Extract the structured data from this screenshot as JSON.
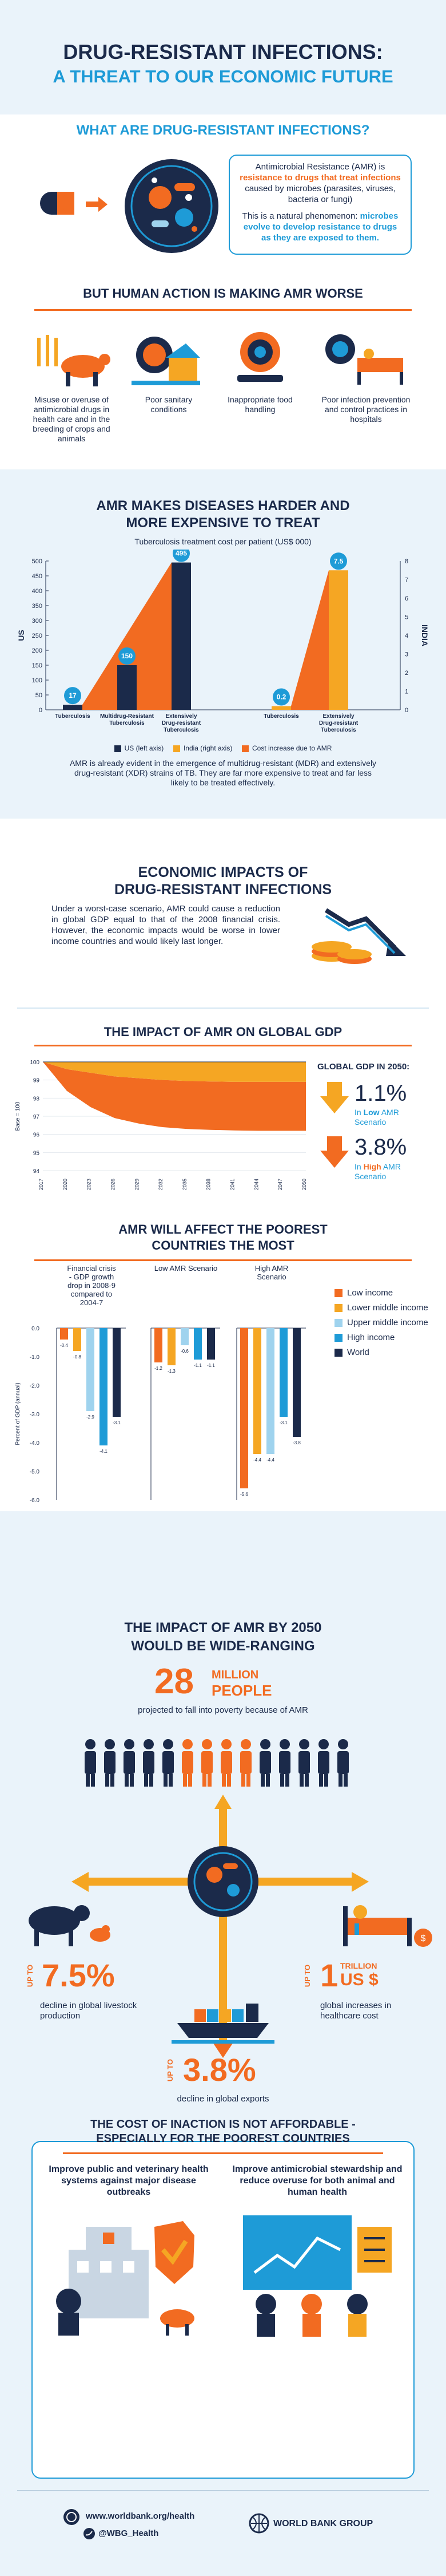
{
  "header": {
    "title_line1": "DRUG-RESISTANT INFECTIONS:",
    "title_line2": "A THREAT TO OUR ECONOMIC FUTURE"
  },
  "what": {
    "heading": "WHAT ARE DRUG-RESISTANT INFECTIONS?",
    "p1_a": "Antimicrobial Resistance (AMR) is",
    "p1_b": "resistance to drugs that treat infections",
    "p1_c": "caused by microbes (parasites, viruses, bacteria or fungi)",
    "p2_a": "This is a natural phenomenon:",
    "p2_b": "microbes evolve to develop resistance to drugs as they are exposed to them."
  },
  "worse": {
    "heading": "BUT HUMAN ACTION IS MAKING AMR WORSE",
    "items": [
      {
        "label": "Misuse or overuse of antimicrobial drugs in health care and in the breeding of crops and animals"
      },
      {
        "label": "Poor sanitary conditions"
      },
      {
        "label": "Inappropriate food handling"
      },
      {
        "label": "Poor infection prevention and control practices in hospitals"
      }
    ]
  },
  "tb": {
    "heading_line1": "AMR MAKES DISEASES HARDER AND",
    "heading_line2": "MORE EXPENSIVE TO TREAT",
    "chart_title": "Tuberculosis treatment cost per patient (US$ 000)",
    "left_axis_label": "US",
    "right_axis_label": "INDIA",
    "left_ticks": [
      "0",
      "50",
      "100",
      "150",
      "200",
      "250",
      "300",
      "350",
      "400",
      "450",
      "500"
    ],
    "right_ticks": [
      "0",
      "1",
      "2",
      "3",
      "4",
      "5",
      "6",
      "7",
      "8"
    ],
    "legend": [
      "US (left axis)",
      "India (right axis)",
      "Cost increase due to AMR"
    ],
    "note": "AMR is already evident in the emergence of multidrug-resistant (MDR) and extensively drug-resistant (XDR) strains of TB. They are far more expensive to treat and far less likely to be treated effectively."
  },
  "econ": {
    "heading_line1": "ECONOMIC IMPACTS OF",
    "heading_line2": "DRUG-RESISTANT INFECTIONS",
    "text": "Under a worst-case scenario, AMR could cause a reduction in global GDP equal to that of the 2008 financial crisis. However, the economic impacts would be worse in lower income countries and would likely last longer."
  },
  "gdp": {
    "heading": "THE IMPACT OF AMR ON GLOBAL GDP",
    "y_axis_label": "Base = 100",
    "y_ticks": [
      "94",
      "95",
      "96",
      "97",
      "98",
      "99",
      "100"
    ],
    "x_ticks": [
      "2017",
      "2020",
      "2023",
      "2026",
      "2029",
      "2032",
      "2035",
      "2038",
      "2041",
      "2044",
      "2047",
      "2050"
    ],
    "side_title": "GLOBAL GDP IN 2050:",
    "low_value": "1.1%",
    "low_text_a": "In",
    "low_text_b": "Low",
    "low_text_c": "AMR Scenario",
    "high_value": "3.8%",
    "high_text_a": "In",
    "high_text_b": "High",
    "high_text_c": "AMR Scenario"
  },
  "poorest": {
    "heading_line1": "AMR WILL AFFECT THE POOREST",
    "heading_line2": "COUNTRIES THE MOST",
    "y_axis_label": "Percent of GDP (annual)",
    "y_ticks": [
      "0.0",
      "-1.0",
      "-2.0",
      "-3.0",
      "-4.0",
      "-5.0",
      "-6.0"
    ],
    "legend": [
      "Low income",
      "Lower middle income",
      "Upper middle income",
      "High income",
      "World"
    ]
  },
  "chart_data": [
    {
      "type": "bar",
      "title": "Tuberculosis treatment cost per patient (US$ 000)",
      "categories": [
        "Tuberculosis",
        "Multidrug-Resistant Tuberculosis",
        "Extensively Drug-resistant Tuberculosis"
      ],
      "series": [
        {
          "name": "US (left axis)",
          "values": [
            17,
            150,
            495
          ]
        }
      ],
      "ylim": [
        0,
        500
      ]
    },
    {
      "type": "bar",
      "title": "Tuberculosis treatment cost per patient (US$ 000)",
      "categories": [
        "Tuberculosis",
        "Extensively Drug-resistant Tuberculosis"
      ],
      "series": [
        {
          "name": "India (right axis)",
          "values": [
            0.2,
            7.5
          ]
        }
      ],
      "ylim": [
        0,
        8
      ]
    },
    {
      "type": "area",
      "x": [
        2017,
        2020,
        2023,
        2026,
        2029,
        2032,
        2035,
        2038,
        2041,
        2044,
        2047,
        2050
      ],
      "series": [
        {
          "name": "",
          "values": [
            100,
            99.6,
            99.4,
            99.2,
            99.1,
            99.0,
            98.95,
            98.92,
            98.9,
            98.9,
            98.9,
            98.9
          ]
        },
        {
          "name": "",
          "values": [
            100,
            98.4,
            97.5,
            96.9,
            96.6,
            96.4,
            96.3,
            96.25,
            96.22,
            96.2,
            96.2,
            96.2
          ]
        }
      ],
      "ylabel": "Base = 100",
      "ylim": [
        94,
        100
      ]
    },
    {
      "type": "bar",
      "categories": [
        "Financial crisis - GDP growth drop in 2008-9 compared to 2004-7",
        "Low AMR Scenario",
        "High AMR Scenario"
      ],
      "series": [
        {
          "name": "Low income",
          "values": [
            -0.4,
            -1.2,
            -5.6
          ]
        },
        {
          "name": "Lower middle income",
          "values": [
            -0.8,
            -1.3,
            -4.4
          ]
        },
        {
          "name": "Upper middle income",
          "values": [
            -2.9,
            -0.6,
            -4.4
          ]
        },
        {
          "name": "High income",
          "values": [
            -4.1,
            -1.1,
            -3.1
          ]
        },
        {
          "name": "World",
          "values": [
            -3.1,
            -1.1,
            -3.8
          ]
        }
      ],
      "ylabel": "Percent of GDP (annual)",
      "ylim": [
        -6,
        0
      ]
    }
  ],
  "wide": {
    "heading_line1": "THE IMPACT OF AMR BY 2050",
    "heading_line2": "WOULD BE WIDE-RANGING",
    "people_number": "28",
    "people_unit_a": "MILLION",
    "people_unit_b": "PEOPLE",
    "people_text": "projected to fall into poverty because of AMR",
    "livestock_upto": "UP TO",
    "livestock_value": "7.5%",
    "livestock_text": "decline in global livestock production",
    "health_upto": "UP TO",
    "health_value": "1",
    "health_unit_a": "TRILLION",
    "health_unit_b": "US $",
    "health_text": "global increases in healthcare cost",
    "exports_upto": "UP TO",
    "exports_value": "3.8%",
    "exports_text": "decline in global exports"
  },
  "inaction": {
    "heading_line1": "THE COST OF INACTION IS NOT AFFORDABLE -",
    "heading_line2": "ESPECIALLY FOR THE POOREST COUNTRIES",
    "left": "Improve public and veterinary health systems against major disease outbreaks",
    "right": "Improve antimicrobial stewardship and reduce overuse for both animal and human health"
  },
  "footer": {
    "website": "www.worldbank.org/health",
    "twitter": "@WBG_Health",
    "org": "WORLD BANK GROUP"
  }
}
